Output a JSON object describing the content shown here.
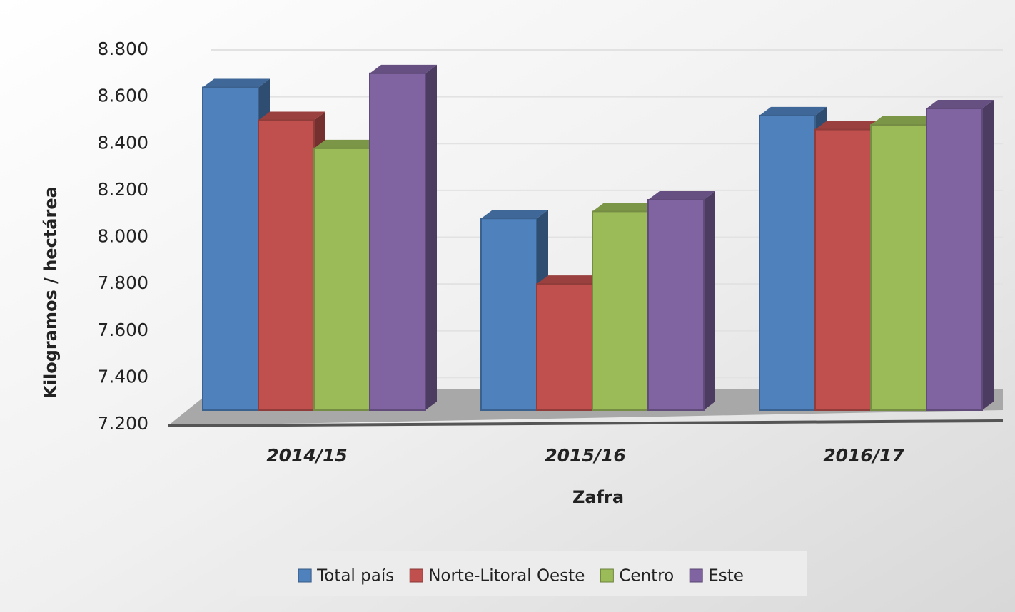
{
  "chart_data": {
    "type": "bar3d",
    "x_label": "Zafra",
    "y_label": "Kilogramos / hectárea",
    "categories": [
      "2014/15",
      "2015/16",
      "2016/17"
    ],
    "series": [
      {
        "name": "Total país",
        "color": "#4f81bd",
        "values": [
          8640,
          8080,
          8520
        ]
      },
      {
        "name": "Norte-Litoral Oeste",
        "color": "#c0504d",
        "values": [
          8500,
          7800,
          8460
        ]
      },
      {
        "name": "Centro",
        "color": "#9bbb59",
        "values": [
          8380,
          8110,
          8480
        ]
      },
      {
        "name": "Este",
        "color": "#8064a2",
        "values": [
          8700,
          8160,
          8550
        ]
      }
    ],
    "ylim": [
      7200,
      8800
    ],
    "yticks": [
      {
        "value": 7200,
        "label": "7.200"
      },
      {
        "value": 7400,
        "label": "7.400"
      },
      {
        "value": 7600,
        "label": "7.600"
      },
      {
        "value": 7800,
        "label": "7.800"
      },
      {
        "value": 8000,
        "label": "8.000"
      },
      {
        "value": 8200,
        "label": "8.200"
      },
      {
        "value": 8400,
        "label": "8.400"
      },
      {
        "value": 8600,
        "label": "8.600"
      },
      {
        "value": 8800,
        "label": "8.800"
      }
    ],
    "grid": true,
    "legend": "bottom"
  }
}
